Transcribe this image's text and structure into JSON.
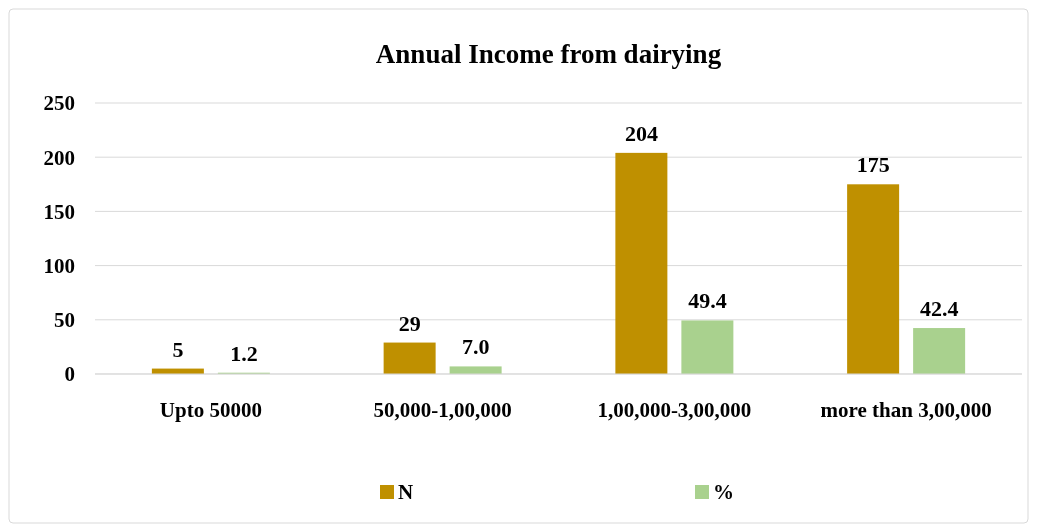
{
  "chart_data": {
    "type": "bar",
    "title": "Annual Income from dairying",
    "categories": [
      "Upto 50000",
      "50,000-1,00,000",
      "1,00,000-3,00,000",
      "more than 3,00,000"
    ],
    "series": [
      {
        "name": "N",
        "color": "#bf9000",
        "values": [
          5,
          29,
          204,
          175
        ],
        "value_labels": [
          "5",
          "29",
          "204",
          "175"
        ]
      },
      {
        "name": "%",
        "color": "#a9d18e",
        "values": [
          1.2,
          7.0,
          49.4,
          42.4
        ],
        "value_labels": [
          "1.2",
          "7.0",
          "49.4",
          "42.4"
        ]
      }
    ],
    "ylim": [
      0,
      250
    ],
    "yticks": [
      0,
      50,
      100,
      150,
      200,
      250
    ],
    "grid": "y",
    "legend": "bottom"
  }
}
